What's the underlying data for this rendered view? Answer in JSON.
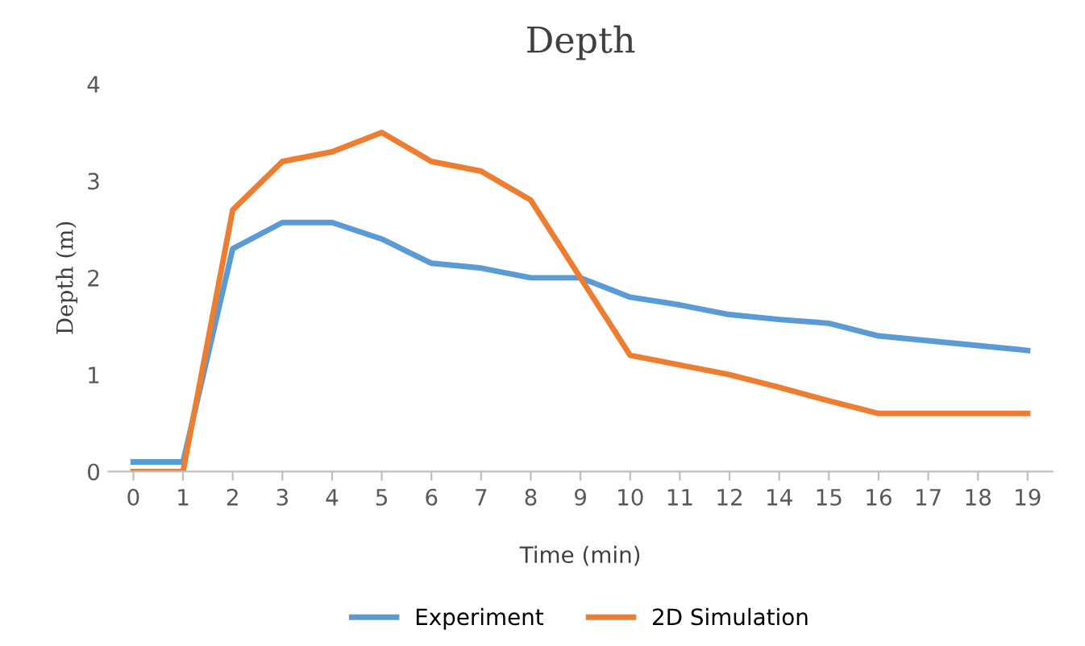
{
  "chart_data": {
    "type": "line",
    "title": "Depth",
    "xlabel": "Time (min)",
    "ylabel": "Depth (m)",
    "categories": [
      "0",
      "1",
      "2",
      "3",
      "4",
      "5",
      "6",
      "7",
      "8",
      "9",
      "10",
      "11",
      "12",
      "14",
      "15",
      "16",
      "17",
      "18",
      "19"
    ],
    "series": [
      {
        "name": "Experiment",
        "color": "#5b9bd5",
        "values": [
          0.1,
          0.1,
          2.3,
          2.57,
          2.57,
          2.4,
          2.15,
          2.1,
          2.0,
          2.0,
          1.8,
          1.72,
          1.62,
          1.57,
          1.53,
          1.4,
          1.35,
          1.3,
          1.25
        ]
      },
      {
        "name": "2D Simulation",
        "color": "#ed7d31",
        "values": [
          0,
          0,
          2.7,
          3.2,
          3.3,
          3.5,
          3.2,
          3.1,
          2.8,
          2.0,
          1.2,
          1.1,
          1.0,
          0.87,
          0.73,
          0.6,
          0.6,
          0.6,
          0.6
        ]
      }
    ],
    "ylim": [
      0,
      4
    ],
    "yticks": [
      0,
      1,
      2,
      3,
      4
    ],
    "grid": false,
    "legend": "bottom",
    "marker": "none",
    "line_style": "solid"
  }
}
